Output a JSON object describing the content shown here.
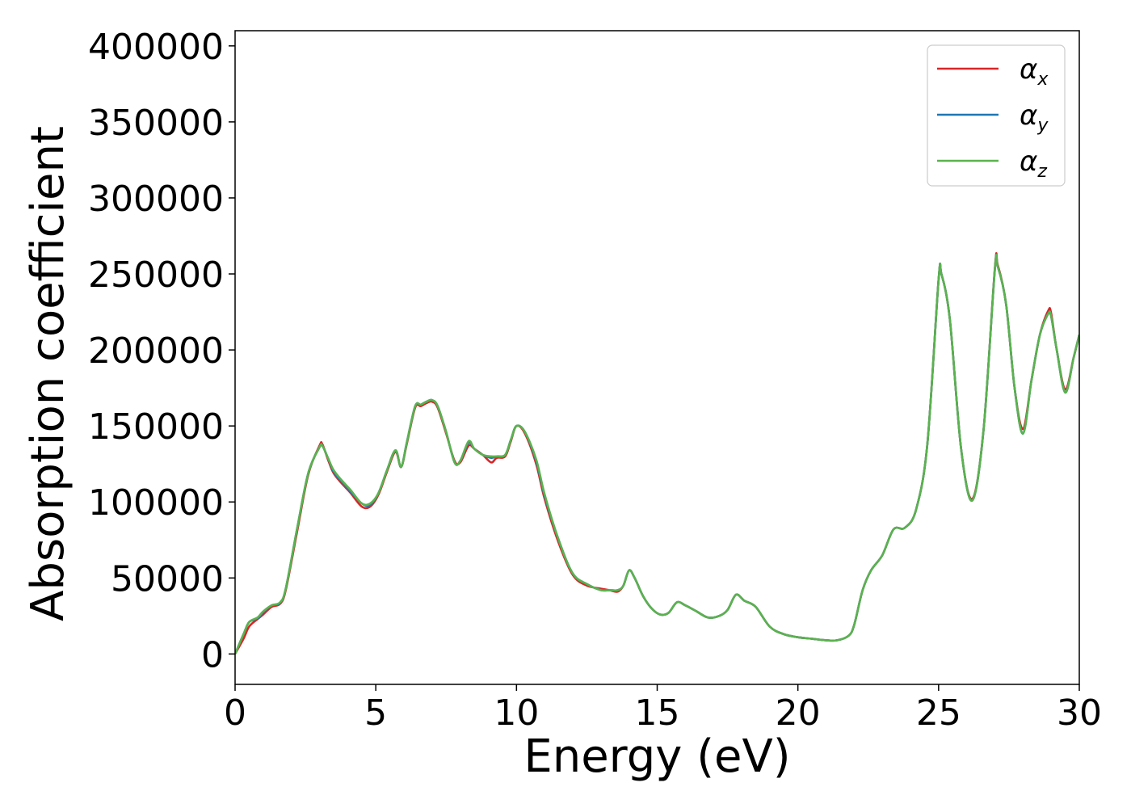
{
  "chart_data": {
    "type": "line",
    "title": "",
    "xlabel": "Energy (eV)",
    "ylabel": "Absorption coefficient",
    "xlim": [
      0,
      30
    ],
    "ylim": [
      -20000,
      410000
    ],
    "xticks": [
      "0",
      "5",
      "10",
      "15",
      "20",
      "25",
      "30"
    ],
    "yticks": [
      "0",
      "50000",
      "100000",
      "150000",
      "200000",
      "250000",
      "300000",
      "350000",
      "400000"
    ],
    "grid": false,
    "legend_position": "top-right",
    "x": [
      0,
      0.3,
      0.5,
      0.8,
      1.0,
      1.3,
      1.6,
      1.8,
      2.2,
      2.6,
      3.0,
      3.1,
      3.3,
      3.5,
      3.8,
      4.1,
      4.5,
      4.8,
      5.1,
      5.4,
      5.7,
      5.9,
      6.1,
      6.4,
      6.6,
      6.8,
      7.0,
      7.2,
      7.5,
      7.8,
      8.0,
      8.3,
      8.5,
      8.8,
      9.1,
      9.3,
      9.6,
      9.8,
      10.0,
      10.3,
      10.7,
      11.0,
      11.5,
      12.0,
      12.5,
      13.0,
      13.3,
      13.6,
      13.8,
      14.0,
      14.2,
      14.5,
      14.8,
      15.1,
      15.4,
      15.7,
      16.0,
      16.4,
      16.8,
      17.2,
      17.5,
      17.8,
      18.1,
      18.5,
      19.0,
      19.5,
      20.0,
      20.5,
      21.0,
      21.4,
      21.8,
      22.0,
      22.3,
      22.6,
      23.0,
      23.4,
      23.8,
      24.2,
      24.6,
      25.0,
      25.1,
      25.4,
      25.8,
      26.2,
      26.6,
      27.0,
      27.1,
      27.4,
      27.7,
      28.0,
      28.3,
      28.6,
      28.9,
      29.0,
      29.2,
      29.5,
      29.8,
      30.0
    ],
    "series": [
      {
        "name": "αx",
        "color": "#d62728",
        "values": [
          0,
          10000,
          18000,
          23000,
          26000,
          31000,
          33000,
          42000,
          80000,
          118000,
          137000,
          138000,
          128000,
          119000,
          112000,
          106000,
          97000,
          97000,
          105000,
          120000,
          133000,
          123000,
          138000,
          162000,
          163000,
          165000,
          166000,
          162000,
          145000,
          127000,
          126000,
          137000,
          135000,
          131000,
          126000,
          129000,
          130000,
          140000,
          150000,
          145000,
          125000,
          102000,
          73000,
          52000,
          45000,
          43000,
          42000,
          41000,
          45000,
          55000,
          50000,
          38000,
          30000,
          26000,
          27000,
          34000,
          32000,
          28000,
          24000,
          25000,
          29000,
          39000,
          35000,
          31000,
          18000,
          13000,
          11000,
          10000,
          9000,
          9000,
          12000,
          19000,
          42000,
          55000,
          65000,
          82000,
          83000,
          95000,
          138000,
          246000,
          250000,
          220000,
          135000,
          102000,
          148000,
          254000,
          256000,
          230000,
          175000,
          148000,
          180000,
          210000,
          226000,
          224000,
          200000,
          174000,
          195000,
          210000
        ]
      },
      {
        "name": "αy",
        "color": "#1f77b4",
        "values": [
          0,
          13000,
          21000,
          23500,
          27500,
          32000,
          33500,
          43000,
          82000,
          119000,
          136000,
          137000,
          129000,
          120000,
          113000,
          107000,
          99000,
          98000,
          106000,
          121000,
          134000,
          123000,
          139000,
          163000,
          164000,
          166000,
          167000,
          163000,
          146000,
          126000,
          127000,
          139000,
          135000,
          131000,
          129000,
          130000,
          131000,
          141000,
          150000,
          146000,
          127000,
          104000,
          75000,
          53000,
          46000,
          42000,
          42000,
          42000,
          45000,
          55000,
          50000,
          38000,
          30000,
          26000,
          27000,
          34000,
          32000,
          28000,
          24000,
          25000,
          29000,
          39000,
          35000,
          31000,
          18000,
          13000,
          11000,
          10000,
          9000,
          9000,
          12000,
          19000,
          42000,
          55000,
          65000,
          82000,
          83000,
          95000,
          138000,
          246000,
          250000,
          220000,
          135000,
          101000,
          148000,
          253000,
          255000,
          230000,
          175000,
          145000,
          180000,
          210000,
          224000,
          222000,
          200000,
          172000,
          195000,
          210000
        ]
      },
      {
        "name": "αz",
        "color": "#5ab24e",
        "values": [
          0,
          13000,
          21000,
          24000,
          28000,
          32000,
          34000,
          43000,
          82000,
          119000,
          136000,
          137000,
          129000,
          121000,
          114000,
          108000,
          99000,
          99000,
          106000,
          121000,
          134000,
          123000,
          139000,
          163000,
          164000,
          166000,
          167000,
          163000,
          146000,
          126000,
          127000,
          140000,
          135000,
          131000,
          130000,
          130000,
          131000,
          141000,
          150000,
          146000,
          128000,
          105000,
          75000,
          53000,
          46000,
          42000,
          42000,
          42000,
          45000,
          55000,
          50000,
          38000,
          30000,
          26000,
          27000,
          34000,
          32000,
          28000,
          24000,
          25000,
          29000,
          39000,
          35000,
          31000,
          18000,
          13000,
          11000,
          10000,
          9000,
          9000,
          12000,
          19000,
          42000,
          55000,
          65000,
          82000,
          83000,
          95000,
          138000,
          246000,
          250000,
          220000,
          135000,
          101000,
          148000,
          253000,
          255000,
          230000,
          175000,
          145000,
          180000,
          210000,
          224000,
          222000,
          200000,
          172000,
          195000,
          210000
        ]
      }
    ]
  },
  "legend": {
    "items": [
      {
        "symbol": "α",
        "sub": "x"
      },
      {
        "symbol": "α",
        "sub": "y"
      },
      {
        "symbol": "α",
        "sub": "z"
      }
    ]
  }
}
